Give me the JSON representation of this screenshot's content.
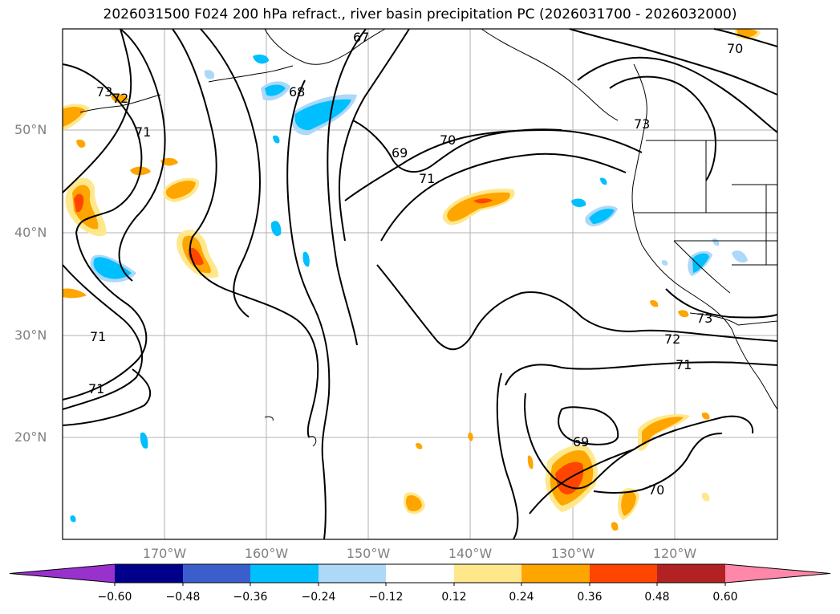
{
  "title": "2026031500 F024 200 hPa refract., river basin precipitation PC (2026031700 - 2026032000)",
  "lat_labels": [
    "50°N",
    "40°N",
    "30°N",
    "20°N"
  ],
  "lon_labels": [
    "170°W",
    "160°W",
    "150°W",
    "140°W",
    "130°W",
    "120°W"
  ],
  "contour_labels": [
    "67",
    "68",
    "73",
    "72",
    "71",
    "69",
    "70",
    "71",
    "73",
    "70",
    "71",
    "71",
    "72",
    "73",
    "71",
    "69",
    "70"
  ],
  "colorbar": {
    "ticks": [
      "−0.60",
      "−0.48",
      "−0.36",
      "−0.24",
      "−0.12",
      "0.12",
      "0.24",
      "0.36",
      "0.48",
      "0.60"
    ],
    "colors": [
      "#9932cc",
      "#00008b",
      "#3a5fcd",
      "#00bfff",
      "#add8f7",
      "#ffffff",
      "#ffe88c",
      "#ffa500",
      "#ff4500",
      "#b22222",
      "#ff88aa"
    ]
  }
}
